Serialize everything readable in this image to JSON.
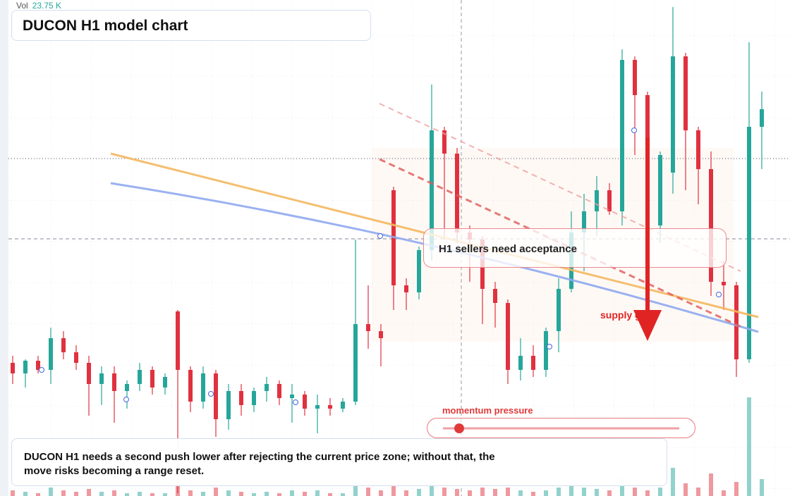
{
  "chart_data": {
    "type": "candlestick",
    "title": "DUCON H1 model chart",
    "volume_caption": "Vol",
    "volume_readout": {
      "value": 23.75,
      "label": "23.75 K"
    },
    "annotation": "H1 sellers need acceptance",
    "zone_label": "supply gate",
    "momentum_label": "momentum pressure",
    "caption": "DUCON H1 needs a second push lower after rejecting the current price zone; without that, the move risks becoming a range reset.",
    "ylim": [
      0,
      704
    ],
    "vlim": [
      0,
      60
    ],
    "up_color": "#26a69a",
    "down_color": "#e0313f",
    "open": [
      189,
      174,
      192,
      179,
      224,
      204,
      189,
      159,
      174,
      149,
      159,
      179,
      154,
      262,
      179,
      134,
      174,
      109,
      149,
      129,
      149,
      159,
      139,
      144,
      124,
      129,
      124,
      134,
      244,
      234,
      434,
      299,
      289,
      349,
      519,
      486,
      374,
      364,
      294,
      274,
      179,
      199,
      179,
      234,
      294,
      374,
      404,
      434,
      404,
      619,
      569,
      384,
      459,
      624,
      519,
      464,
      304,
      299,
      194,
      524
    ],
    "high": [
      199,
      194,
      199,
      239,
      234,
      214,
      199,
      184,
      184,
      164,
      189,
      184,
      174,
      264,
      184,
      184,
      179,
      159,
      159,
      154,
      169,
      164,
      159,
      149,
      144,
      139,
      139,
      364,
      299,
      244,
      439,
      309,
      354,
      584,
      524,
      494,
      384,
      369,
      304,
      279,
      224,
      214,
      239,
      309,
      404,
      429,
      454,
      444,
      634,
      624,
      574,
      489,
      694,
      629,
      524,
      489,
      334,
      304,
      644,
      574
    ],
    "low": [
      159,
      154,
      174,
      159,
      194,
      179,
      114,
      129,
      104,
      124,
      149,
      144,
      144,
      4,
      119,
      124,
      84,
      94,
      114,
      119,
      134,
      129,
      104,
      114,
      89,
      114,
      119,
      129,
      209,
      184,
      264,
      264,
      279,
      334,
      364,
      359,
      304,
      244,
      239,
      159,
      164,
      169,
      169,
      204,
      289,
      319,
      369,
      399,
      384,
      484,
      374,
      359,
      429,
      434,
      414,
      284,
      264,
      169,
      189,
      464
    ],
    "close": [
      174,
      192,
      179,
      224,
      204,
      189,
      159,
      174,
      149,
      159,
      179,
      154,
      169,
      179,
      134,
      174,
      109,
      149,
      129,
      149,
      159,
      139,
      144,
      124,
      129,
      124,
      134,
      244,
      234,
      224,
      299,
      289,
      349,
      519,
      486,
      374,
      364,
      294,
      274,
      179,
      199,
      179,
      234,
      294,
      374,
      404,
      434,
      404,
      619,
      569,
      384,
      484,
      624,
      519,
      464,
      304,
      299,
      194,
      524,
      549
    ],
    "volume": [
      2,
      1.5,
      1,
      3,
      2,
      1.5,
      2.5,
      1.5,
      2,
      1,
      1.5,
      1,
      1,
      4,
      2,
      1.5,
      3,
      2,
      1.5,
      1,
      1.5,
      1,
      2,
      1.5,
      2,
      1,
      1,
      5,
      3,
      2,
      4,
      2,
      2.5,
      5,
      3,
      2.5,
      2,
      3,
      2.5,
      3,
      2,
      1.5,
      2,
      3,
      4,
      3,
      2.5,
      2,
      6,
      3,
      2,
      3,
      10,
      4.5,
      3,
      8,
      2,
      5,
      35,
      6
    ]
  }
}
